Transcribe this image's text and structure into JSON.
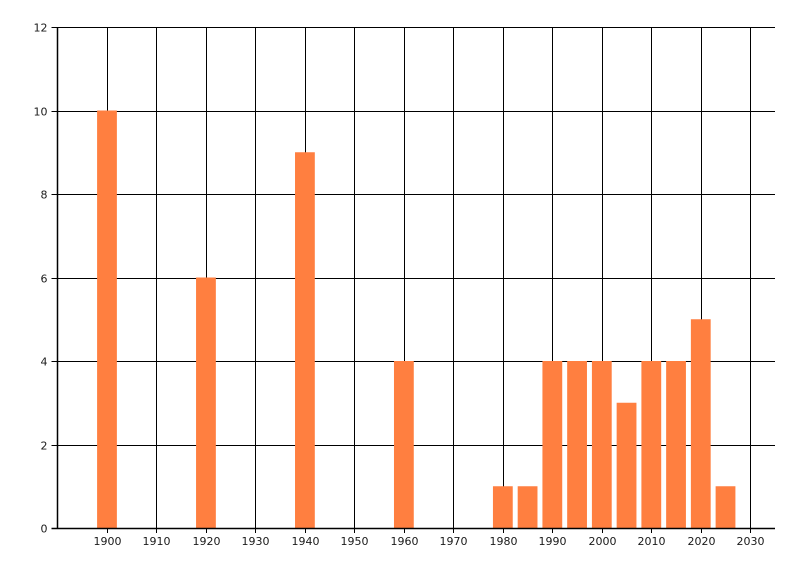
{
  "chart_data": {
    "type": "bar",
    "title": "",
    "xlabel": "",
    "ylabel": "",
    "x": [
      1900,
      1920,
      1940,
      1960,
      1980,
      1985,
      1990,
      1995,
      2000,
      2005,
      2010,
      2015,
      2020,
      2025
    ],
    "values": [
      10,
      6,
      9,
      4,
      1,
      1,
      4,
      4,
      4,
      3,
      4,
      4,
      5,
      1
    ],
    "bar_width_years": 4,
    "xlim": [
      1890,
      2035
    ],
    "ylim": [
      0,
      12
    ],
    "xticks": [
      1900,
      1910,
      1920,
      1930,
      1940,
      1950,
      1960,
      1970,
      1980,
      1990,
      2000,
      2010,
      2020,
      2030
    ],
    "yticks": [
      0,
      2,
      4,
      6,
      8,
      10,
      12
    ],
    "grid": true,
    "legend": "none",
    "colors": {
      "bar": "#FF7F40",
      "grid": "#000000",
      "axis": "#000000"
    }
  }
}
